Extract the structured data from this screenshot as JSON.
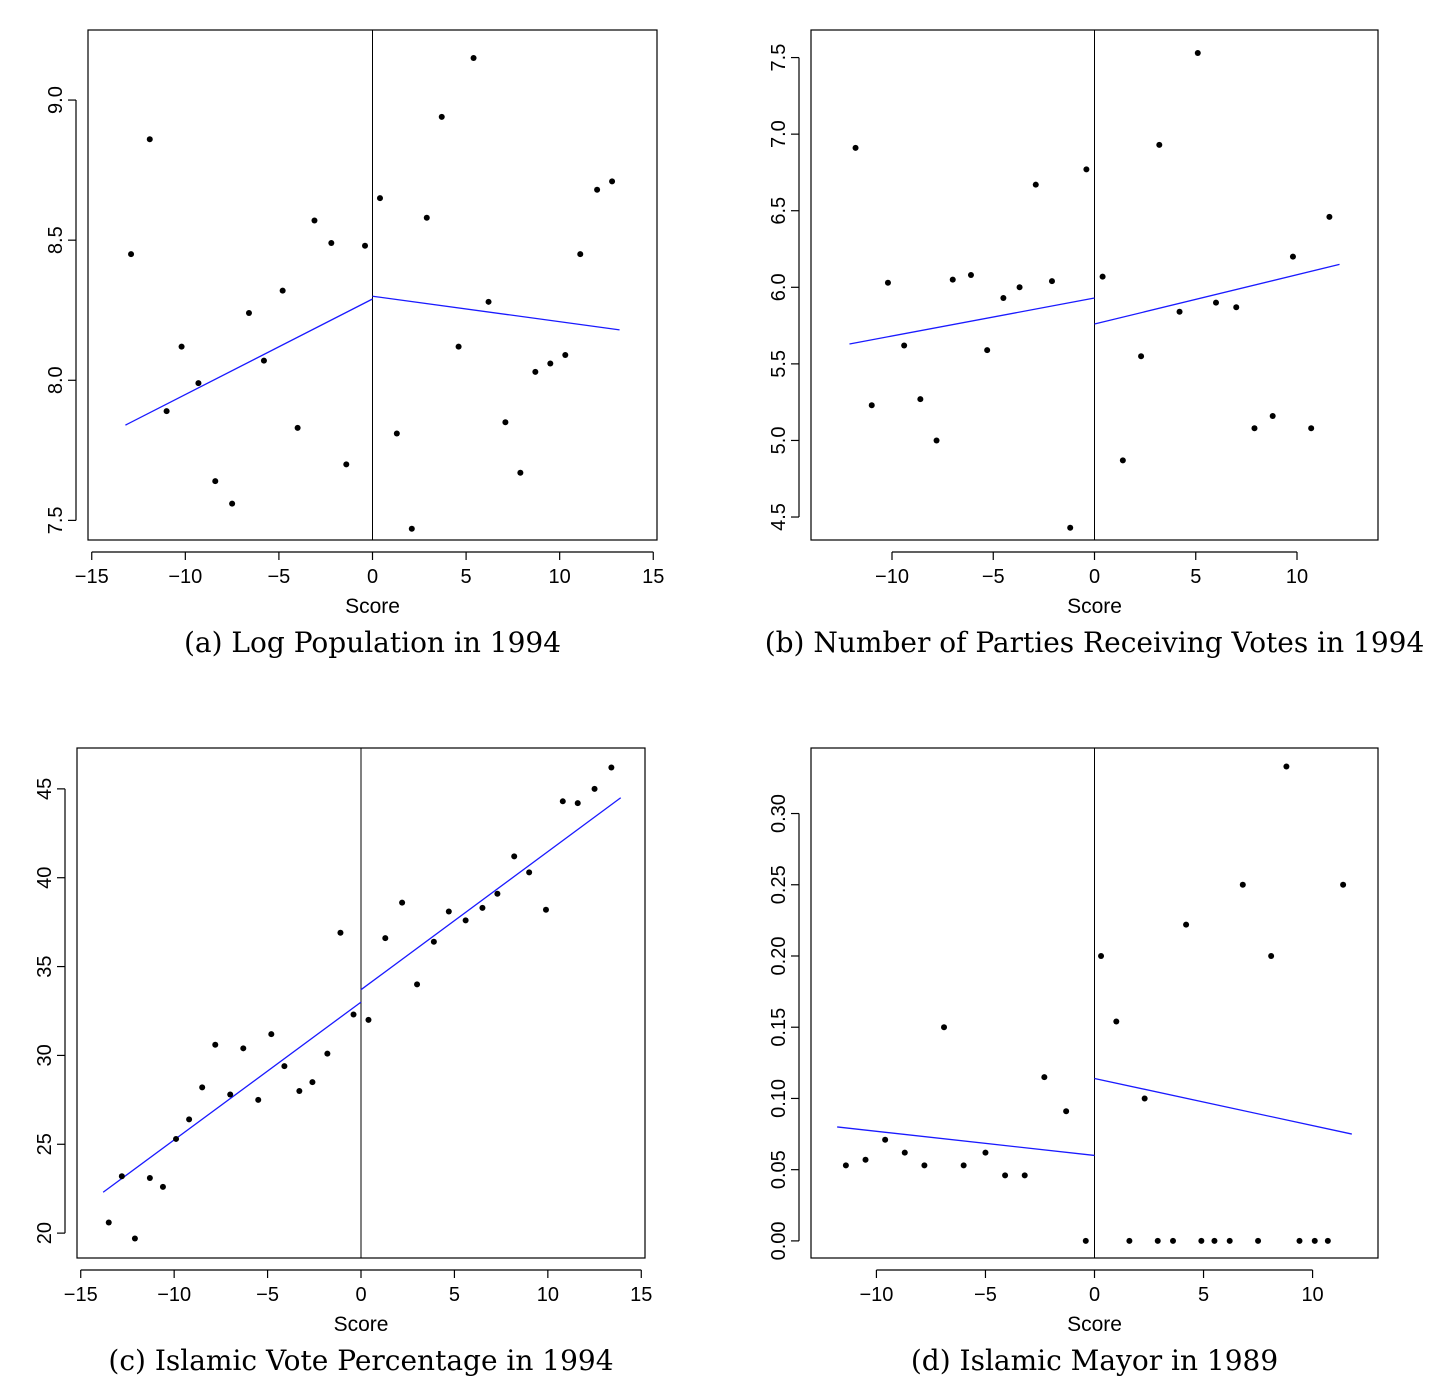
{
  "chart_data": [
    {
      "type": "scatter",
      "caption": "(a) Log Population in 1994",
      "xlabel": "Score",
      "ylabel": "",
      "xlim": [
        -15.2,
        15.2
      ],
      "ylim": [
        7.43,
        9.25
      ],
      "xticks": [
        -15,
        -10,
        -5,
        0,
        5,
        10,
        15
      ],
      "yticks": [
        7.5,
        8.0,
        8.5,
        9.0
      ],
      "ytick_labels": [
        "7.5",
        "8.0",
        "8.5",
        "9.0"
      ],
      "cutoff": 0,
      "points": [
        [
          -12.9,
          8.45
        ],
        [
          -11.9,
          8.86
        ],
        [
          -11.0,
          7.89
        ],
        [
          -10.2,
          8.12
        ],
        [
          -9.3,
          7.99
        ],
        [
          -8.4,
          7.64
        ],
        [
          -7.5,
          7.56
        ],
        [
          -6.6,
          8.24
        ],
        [
          -5.8,
          8.07
        ],
        [
          -4.8,
          8.32
        ],
        [
          -4.0,
          7.83
        ],
        [
          -3.1,
          8.57
        ],
        [
          -2.2,
          8.49
        ],
        [
          -1.4,
          7.7
        ],
        [
          -0.4,
          8.48
        ],
        [
          0.4,
          8.65
        ],
        [
          1.3,
          7.81
        ],
        [
          2.1,
          7.47
        ],
        [
          2.9,
          8.58
        ],
        [
          3.7,
          8.94
        ],
        [
          4.6,
          8.12
        ],
        [
          5.4,
          9.15
        ],
        [
          6.2,
          8.28
        ],
        [
          7.1,
          7.85
        ],
        [
          7.9,
          7.67
        ],
        [
          8.7,
          8.03
        ],
        [
          9.5,
          8.06
        ],
        [
          10.3,
          8.09
        ],
        [
          11.1,
          8.45
        ],
        [
          12.0,
          8.68
        ],
        [
          12.8,
          8.71
        ]
      ],
      "fit_lines": [
        {
          "x": [
            -13.2,
            0
          ],
          "y": [
            7.84,
            8.29
          ]
        },
        {
          "x": [
            0,
            13.2
          ],
          "y": [
            8.3,
            8.18
          ]
        }
      ]
    },
    {
      "type": "scatter",
      "caption": "(b) Number of Parties Receiving Votes in 1994",
      "xlabel": "Score",
      "ylabel": "",
      "xlim": [
        -14.0,
        14.0
      ],
      "ylim": [
        4.35,
        7.68
      ],
      "xticks": [
        -10,
        -5,
        0,
        5,
        10
      ],
      "yticks": [
        4.5,
        5.0,
        5.5,
        6.0,
        6.5,
        7.0,
        7.5
      ],
      "ytick_labels": [
        "4.5",
        "5.0",
        "5.5",
        "6.0",
        "6.5",
        "7.0",
        "7.5"
      ],
      "cutoff": 0,
      "points": [
        [
          -11.8,
          6.91
        ],
        [
          -11.0,
          5.23
        ],
        [
          -10.2,
          6.03
        ],
        [
          -9.4,
          5.62
        ],
        [
          -8.6,
          5.27
        ],
        [
          -7.8,
          5.0
        ],
        [
          -7.0,
          6.05
        ],
        [
          -6.1,
          6.08
        ],
        [
          -5.3,
          5.59
        ],
        [
          -4.5,
          5.93
        ],
        [
          -3.7,
          6.0
        ],
        [
          -2.9,
          6.67
        ],
        [
          -2.1,
          6.04
        ],
        [
          -1.2,
          4.43
        ],
        [
          -0.4,
          6.77
        ],
        [
          0.4,
          6.07
        ],
        [
          1.4,
          4.87
        ],
        [
          2.3,
          5.55
        ],
        [
          3.2,
          6.93
        ],
        [
          4.2,
          5.84
        ],
        [
          5.1,
          7.53
        ],
        [
          6.0,
          5.9
        ],
        [
          7.0,
          5.87
        ],
        [
          7.9,
          5.08
        ],
        [
          8.8,
          5.16
        ],
        [
          9.8,
          6.2
        ],
        [
          10.7,
          5.08
        ],
        [
          11.6,
          6.46
        ]
      ],
      "fit_lines": [
        {
          "x": [
            -12.1,
            0
          ],
          "y": [
            5.63,
            5.93
          ]
        },
        {
          "x": [
            0,
            12.1
          ],
          "y": [
            5.76,
            6.15
          ]
        }
      ]
    },
    {
      "type": "scatter",
      "caption": "(c) Islamic Vote Percentage in 1994",
      "xlabel": "Score",
      "ylabel": "",
      "xlim": [
        -15.2,
        15.2
      ],
      "ylim": [
        18.6,
        47.3
      ],
      "xticks": [
        -15,
        -10,
        -5,
        0,
        5,
        10,
        15
      ],
      "yticks": [
        20,
        25,
        30,
        35,
        40,
        45
      ],
      "ytick_labels": [
        "20",
        "25",
        "30",
        "35",
        "40",
        "45"
      ],
      "cutoff": 0,
      "points": [
        [
          -13.5,
          20.6
        ],
        [
          -12.8,
          23.2
        ],
        [
          -12.1,
          19.7
        ],
        [
          -11.3,
          23.1
        ],
        [
          -10.6,
          22.6
        ],
        [
          -9.9,
          25.3
        ],
        [
          -9.2,
          26.4
        ],
        [
          -8.5,
          28.2
        ],
        [
          -7.8,
          30.6
        ],
        [
          -7.0,
          27.8
        ],
        [
          -6.3,
          30.4
        ],
        [
          -5.5,
          27.5
        ],
        [
          -4.8,
          31.2
        ],
        [
          -4.1,
          29.4
        ],
        [
          -3.3,
          28.0
        ],
        [
          -2.6,
          28.5
        ],
        [
          -1.8,
          30.1
        ],
        [
          -1.1,
          36.9
        ],
        [
          -0.4,
          32.3
        ],
        [
          0.4,
          32.0
        ],
        [
          1.3,
          36.6
        ],
        [
          2.2,
          38.6
        ],
        [
          3.0,
          34.0
        ],
        [
          3.9,
          36.4
        ],
        [
          4.7,
          38.1
        ],
        [
          5.6,
          37.6
        ],
        [
          6.5,
          38.3
        ],
        [
          7.3,
          39.1
        ],
        [
          8.2,
          41.2
        ],
        [
          9.0,
          40.3
        ],
        [
          9.9,
          38.2
        ],
        [
          10.8,
          44.3
        ],
        [
          11.6,
          44.2
        ],
        [
          12.5,
          45.0
        ],
        [
          13.4,
          46.2
        ]
      ],
      "fit_lines": [
        {
          "x": [
            -13.8,
            0
          ],
          "y": [
            22.3,
            33.0
          ]
        },
        {
          "x": [
            0,
            13.9
          ],
          "y": [
            33.7,
            44.5
          ]
        }
      ]
    },
    {
      "type": "scatter",
      "caption": "(d) Islamic Mayor in 1989",
      "xlabel": "Score",
      "ylabel": "",
      "xlim": [
        -13.0,
        13.0
      ],
      "ylim": [
        -0.012,
        0.346
      ],
      "xticks": [
        -10,
        -5,
        0,
        5,
        10
      ],
      "yticks": [
        0.0,
        0.05,
        0.1,
        0.15,
        0.2,
        0.25,
        0.3
      ],
      "ytick_labels": [
        "0.00",
        "0.05",
        "0.10",
        "0.15",
        "0.20",
        "0.25",
        "0.30"
      ],
      "cutoff": 0,
      "points": [
        [
          -11.4,
          0.053
        ],
        [
          -10.5,
          0.057
        ],
        [
          -9.6,
          0.071
        ],
        [
          -8.7,
          0.062
        ],
        [
          -7.8,
          0.053
        ],
        [
          -6.9,
          0.15
        ],
        [
          -6.0,
          0.053
        ],
        [
          -5.0,
          0.062
        ],
        [
          -4.1,
          0.046
        ],
        [
          -3.2,
          0.046
        ],
        [
          -2.3,
          0.115
        ],
        [
          -1.3,
          0.091
        ],
        [
          -0.4,
          0.0
        ],
        [
          0.3,
          0.2
        ],
        [
          1.0,
          0.154
        ],
        [
          1.6,
          0.0
        ],
        [
          2.3,
          0.1
        ],
        [
          2.9,
          0.0
        ],
        [
          3.6,
          0.0
        ],
        [
          4.2,
          0.222
        ],
        [
          4.9,
          0.0
        ],
        [
          5.5,
          0.0
        ],
        [
          6.2,
          0.0
        ],
        [
          6.8,
          0.25
        ],
        [
          7.5,
          0.0
        ],
        [
          8.1,
          0.2
        ],
        [
          8.8,
          0.333
        ],
        [
          9.4,
          0.0
        ],
        [
          10.1,
          0.0
        ],
        [
          10.7,
          0.0
        ],
        [
          11.4,
          0.25
        ]
      ],
      "fit_lines": [
        {
          "x": [
            -11.8,
            0
          ],
          "y": [
            0.08,
            0.06
          ]
        },
        {
          "x": [
            0,
            11.8
          ],
          "y": [
            0.114,
            0.075
          ]
        }
      ]
    }
  ]
}
